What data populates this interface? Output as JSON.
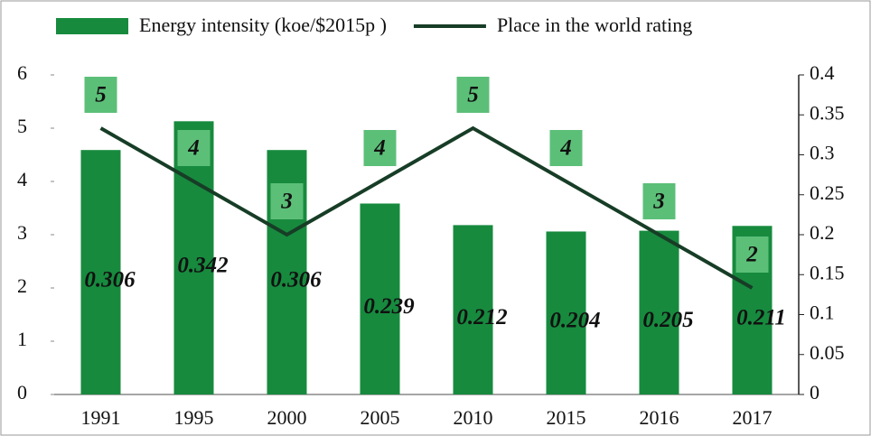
{
  "chart_data": {
    "type": "bar",
    "categories": [
      "1991",
      "1995",
      "2000",
      "2005",
      "2010",
      "2015",
      "2016",
      "2017"
    ],
    "series": [
      {
        "name": "Energy intensity (koe/$2015p )",
        "type": "bar",
        "axis": "y2",
        "color": "#178a3e",
        "values": [
          0.306,
          0.342,
          0.306,
          0.239,
          0.212,
          0.204,
          0.205,
          0.211
        ]
      },
      {
        "name": "Place in the world rating",
        "type": "line",
        "color": "#173d26",
        "label_color": "#5cbf78",
        "values": [
          5,
          4,
          3,
          4,
          5,
          4,
          3,
          2
        ]
      }
    ],
    "ylim": [
      0,
      6
    ],
    "yticks": [
      0,
      1,
      2,
      3,
      4,
      5,
      6
    ],
    "y2lim": [
      0,
      0.4
    ],
    "y2ticks": [
      0,
      0.05,
      0.1,
      0.15,
      0.2,
      0.25,
      0.3,
      0.35,
      0.4
    ]
  }
}
